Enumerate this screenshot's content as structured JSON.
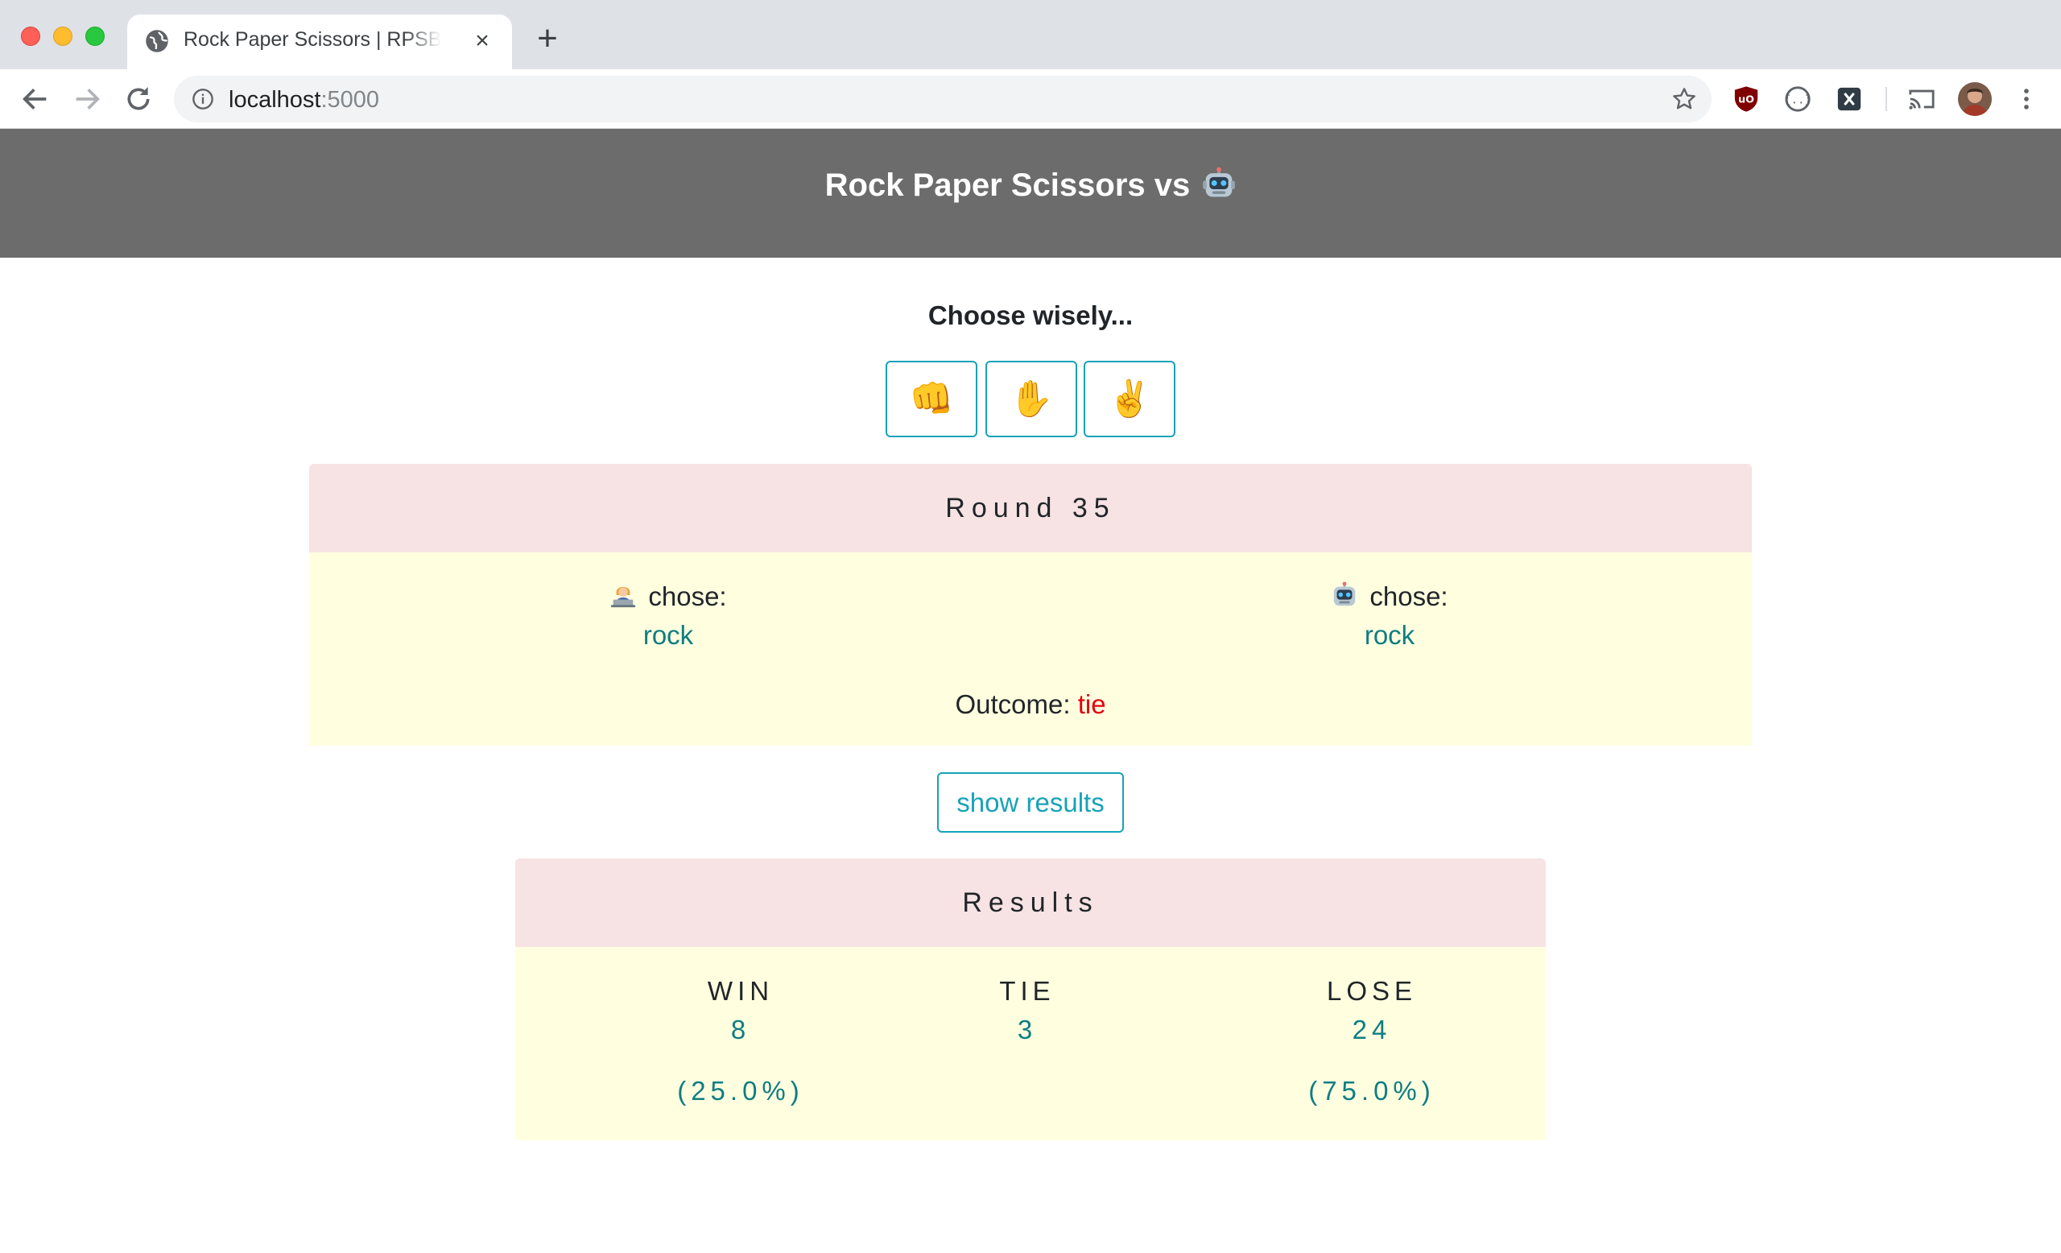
{
  "browser": {
    "tab_title": "Rock Paper Scissors | RPSBOT",
    "url_host": "localhost",
    "url_port": ":5000",
    "icons": [
      "globe-icon",
      "close-icon",
      "plus-icon",
      "back-icon",
      "forward-icon",
      "reload-icon",
      "info-icon",
      "star-icon",
      "ublock-icon",
      "json-icon",
      "x-extension-icon",
      "cast-icon",
      "avatar",
      "menu-icon"
    ]
  },
  "header": {
    "title": "Rock Paper Scissors vs",
    "title_icon": "robot-icon"
  },
  "prompt": "Choose wisely...",
  "choices": [
    {
      "name": "rock",
      "emoji": "👊"
    },
    {
      "name": "paper",
      "emoji": "✋"
    },
    {
      "name": "scissors",
      "emoji": "✌️"
    }
  ],
  "round": {
    "title": "Round 35",
    "human": {
      "icon": "person-at-computer-icon",
      "label": "chose:",
      "choice": "rock"
    },
    "bot": {
      "icon": "robot-icon",
      "label": "chose:",
      "choice": "rock"
    },
    "outcome_label": "Outcome:",
    "outcome_value": "tie"
  },
  "show_results_label": "show results",
  "results": {
    "title": "Results",
    "win": {
      "label": "WIN",
      "count": "8",
      "percent": "(25.0%)"
    },
    "tie": {
      "label": "TIE",
      "count": "3",
      "percent": ""
    },
    "lose": {
      "label": "LOSE",
      "count": "24",
      "percent": "(75.0%)"
    }
  },
  "colors": {
    "header_bg": "#6c6c6c",
    "card_header_bg": "#f7e3e3",
    "card_body_bg": "#ffffe0",
    "accent": "#17a2b8",
    "value": "#0f7d82",
    "outcome": "#e3000f"
  }
}
